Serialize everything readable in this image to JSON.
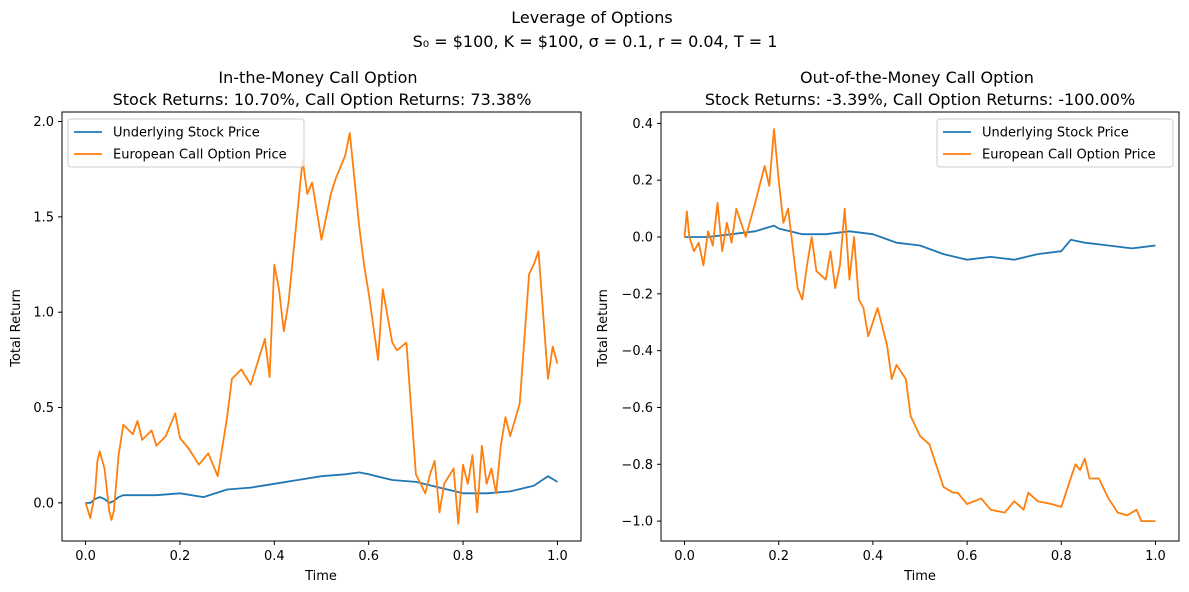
{
  "figure": {
    "suptitle_line1": "Leverage of Options",
    "suptitle_line2": "S₀ = $100, K = $100, σ = 0.1, r = 0.04, T = 1"
  },
  "colors": {
    "stock": "#1f77b4",
    "call": "#ff7f0e"
  },
  "chart_data": [
    {
      "type": "line",
      "title_line1": "In-the-Money Call Option",
      "title_line2": "Stock Returns: 10.70%, Call Option Returns: 73.38%",
      "xlabel": "Time",
      "ylabel": "Total Return",
      "xlim": [
        -0.05,
        1.05
      ],
      "ylim": [
        -0.2,
        2.05
      ],
      "xticks": [
        0.0,
        0.2,
        0.4,
        0.6,
        0.8,
        1.0
      ],
      "xtick_labels": [
        "0.0",
        "0.2",
        "0.4",
        "0.6",
        "0.8",
        "1.0"
      ],
      "yticks": [
        0.0,
        0.5,
        1.0,
        1.5,
        2.0
      ],
      "ytick_labels": [
        "0.0",
        "0.5",
        "1.0",
        "1.5",
        "2.0"
      ],
      "grid": false,
      "legend_position": "top-left",
      "series": [
        {
          "name": "Underlying Stock Price",
          "x": [
            0.0,
            0.01,
            0.02,
            0.03,
            0.04,
            0.05,
            0.06,
            0.07,
            0.08,
            0.1,
            0.15,
            0.2,
            0.25,
            0.3,
            0.35,
            0.4,
            0.45,
            0.5,
            0.55,
            0.58,
            0.6,
            0.65,
            0.7,
            0.75,
            0.8,
            0.85,
            0.9,
            0.95,
            0.98,
            1.0
          ],
          "y": [
            0.0,
            0.0,
            0.02,
            0.03,
            0.02,
            0.0,
            0.01,
            0.03,
            0.04,
            0.04,
            0.04,
            0.05,
            0.03,
            0.07,
            0.08,
            0.1,
            0.12,
            0.14,
            0.15,
            0.16,
            0.15,
            0.12,
            0.11,
            0.08,
            0.05,
            0.05,
            0.06,
            0.09,
            0.14,
            0.11
          ]
        },
        {
          "name": "European Call Option Price",
          "x": [
            0.0,
            0.01,
            0.02,
            0.025,
            0.03,
            0.04,
            0.05,
            0.055,
            0.06,
            0.07,
            0.08,
            0.1,
            0.11,
            0.12,
            0.14,
            0.15,
            0.17,
            0.19,
            0.2,
            0.22,
            0.24,
            0.26,
            0.28,
            0.3,
            0.31,
            0.33,
            0.35,
            0.37,
            0.38,
            0.39,
            0.4,
            0.41,
            0.42,
            0.43,
            0.45,
            0.46,
            0.47,
            0.48,
            0.5,
            0.52,
            0.53,
            0.55,
            0.56,
            0.58,
            0.59,
            0.6,
            0.62,
            0.63,
            0.65,
            0.66,
            0.68,
            0.7,
            0.72,
            0.73,
            0.74,
            0.75,
            0.76,
            0.78,
            0.79,
            0.8,
            0.81,
            0.82,
            0.83,
            0.84,
            0.85,
            0.86,
            0.87,
            0.88,
            0.89,
            0.9,
            0.92,
            0.94,
            0.95,
            0.96,
            0.97,
            0.98,
            0.99,
            1.0
          ],
          "y": [
            0.0,
            -0.08,
            0.05,
            0.22,
            0.27,
            0.18,
            -0.04,
            -0.09,
            -0.04,
            0.25,
            0.41,
            0.36,
            0.43,
            0.33,
            0.38,
            0.3,
            0.35,
            0.47,
            0.34,
            0.28,
            0.2,
            0.26,
            0.14,
            0.45,
            0.65,
            0.7,
            0.62,
            0.78,
            0.86,
            0.66,
            1.25,
            1.12,
            0.9,
            1.05,
            1.55,
            1.8,
            1.62,
            1.68,
            1.38,
            1.62,
            1.7,
            1.82,
            1.94,
            1.45,
            1.25,
            1.1,
            0.75,
            1.12,
            0.84,
            0.8,
            0.84,
            0.15,
            0.05,
            0.15,
            0.22,
            -0.05,
            0.1,
            0.18,
            -0.11,
            0.2,
            0.1,
            0.25,
            -0.05,
            0.3,
            0.1,
            0.18,
            0.05,
            0.3,
            0.45,
            0.35,
            0.52,
            1.2,
            1.25,
            1.32,
            0.98,
            0.65,
            0.82,
            0.73
          ]
        }
      ]
    },
    {
      "type": "line",
      "title_line1": "Out-of-the-Money Call Option",
      "title_line2": "Stock Returns: -3.39%, Call Option Returns: -100.00%",
      "xlabel": "Time",
      "ylabel": "Total Return",
      "xlim": [
        -0.05,
        1.05
      ],
      "ylim": [
        -1.07,
        0.44
      ],
      "xticks": [
        0.0,
        0.2,
        0.4,
        0.6,
        0.8,
        1.0
      ],
      "xtick_labels": [
        "0.0",
        "0.2",
        "0.4",
        "0.6",
        "0.8",
        "1.0"
      ],
      "yticks": [
        -1.0,
        -0.8,
        -0.6,
        -0.4,
        -0.2,
        0.0,
        0.2,
        0.4
      ],
      "ytick_labels": [
        "−1.0",
        "−0.8",
        "−0.6",
        "−0.4",
        "−0.2",
        "0.0",
        "0.2",
        "0.4"
      ],
      "grid": false,
      "legend_position": "top-right",
      "series": [
        {
          "name": "Underlying Stock Price",
          "x": [
            0.0,
            0.05,
            0.1,
            0.15,
            0.19,
            0.2,
            0.25,
            0.3,
            0.35,
            0.4,
            0.45,
            0.5,
            0.55,
            0.6,
            0.65,
            0.7,
            0.75,
            0.8,
            0.82,
            0.85,
            0.9,
            0.95,
            1.0
          ],
          "y": [
            0.0,
            0.0,
            0.01,
            0.02,
            0.04,
            0.03,
            0.01,
            0.01,
            0.02,
            0.01,
            -0.02,
            -0.03,
            -0.06,
            -0.08,
            -0.07,
            -0.08,
            -0.06,
            -0.05,
            -0.01,
            -0.02,
            -0.03,
            -0.04,
            -0.03
          ]
        },
        {
          "name": "European Call Option Price",
          "x": [
            0.0,
            0.005,
            0.01,
            0.02,
            0.03,
            0.04,
            0.05,
            0.06,
            0.07,
            0.08,
            0.09,
            0.1,
            0.11,
            0.13,
            0.15,
            0.17,
            0.18,
            0.19,
            0.2,
            0.21,
            0.22,
            0.24,
            0.25,
            0.26,
            0.27,
            0.28,
            0.3,
            0.31,
            0.32,
            0.33,
            0.34,
            0.35,
            0.36,
            0.37,
            0.38,
            0.39,
            0.4,
            0.41,
            0.43,
            0.44,
            0.45,
            0.47,
            0.48,
            0.5,
            0.52,
            0.53,
            0.55,
            0.57,
            0.58,
            0.6,
            0.63,
            0.65,
            0.68,
            0.7,
            0.72,
            0.73,
            0.75,
            0.78,
            0.8,
            0.82,
            0.83,
            0.84,
            0.85,
            0.86,
            0.88,
            0.9,
            0.92,
            0.94,
            0.96,
            0.97,
            0.98,
            1.0
          ],
          "y": [
            0.0,
            0.09,
            0.0,
            -0.05,
            -0.02,
            -0.1,
            0.02,
            -0.03,
            0.12,
            -0.05,
            0.05,
            -0.02,
            0.1,
            0.0,
            0.12,
            0.25,
            0.18,
            0.38,
            0.2,
            0.05,
            0.1,
            -0.18,
            -0.22,
            -0.1,
            0.0,
            -0.12,
            -0.15,
            -0.05,
            -0.18,
            -0.1,
            0.1,
            -0.15,
            0.0,
            -0.22,
            -0.25,
            -0.35,
            -0.3,
            -0.25,
            -0.38,
            -0.5,
            -0.45,
            -0.5,
            -0.63,
            -0.7,
            -0.73,
            -0.78,
            -0.88,
            -0.9,
            -0.9,
            -0.94,
            -0.92,
            -0.96,
            -0.97,
            -0.93,
            -0.96,
            -0.9,
            -0.93,
            -0.94,
            -0.95,
            -0.85,
            -0.8,
            -0.82,
            -0.78,
            -0.85,
            -0.85,
            -0.92,
            -0.97,
            -0.98,
            -0.96,
            -1.0,
            -1.0,
            -1.0
          ]
        }
      ]
    }
  ]
}
